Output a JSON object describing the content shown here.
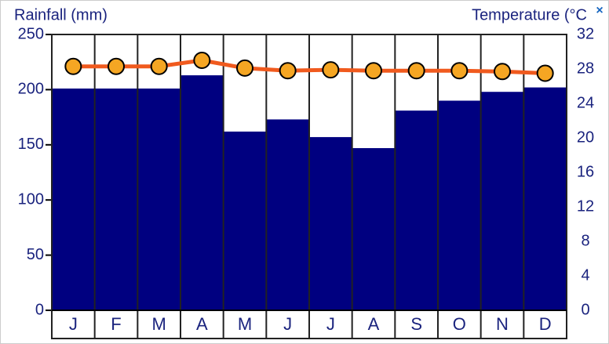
{
  "chart_data": {
    "type": "bar",
    "y_label": "Rainfall (mm)",
    "y2_label": "Temperature (°C",
    "close": "×",
    "categories": [
      "J",
      "F",
      "M",
      "A",
      "M",
      "J",
      "J",
      "A",
      "S",
      "O",
      "N",
      "D"
    ],
    "series": [
      {
        "type": "bar",
        "color": "#000080",
        "values": [
          201,
          201,
          201,
          213,
          162,
          173,
          157,
          147,
          181,
          190,
          198,
          202
        ]
      },
      {
        "type": "line",
        "axis": "y2",
        "color": "#f05a1e",
        "marker_color": "#f5a623",
        "values": [
          28.3,
          28.3,
          28.3,
          29,
          28.1,
          27.8,
          27.9,
          27.8,
          27.8,
          27.8,
          27.7,
          27.5
        ]
      }
    ],
    "ylim": [
      0,
      250
    ],
    "yticks": [
      0,
      50,
      100,
      150,
      200,
      250
    ],
    "y2lim": [
      0,
      32
    ],
    "y2ticks": [
      0,
      4,
      8,
      12,
      16,
      20,
      24,
      28,
      32
    ]
  }
}
